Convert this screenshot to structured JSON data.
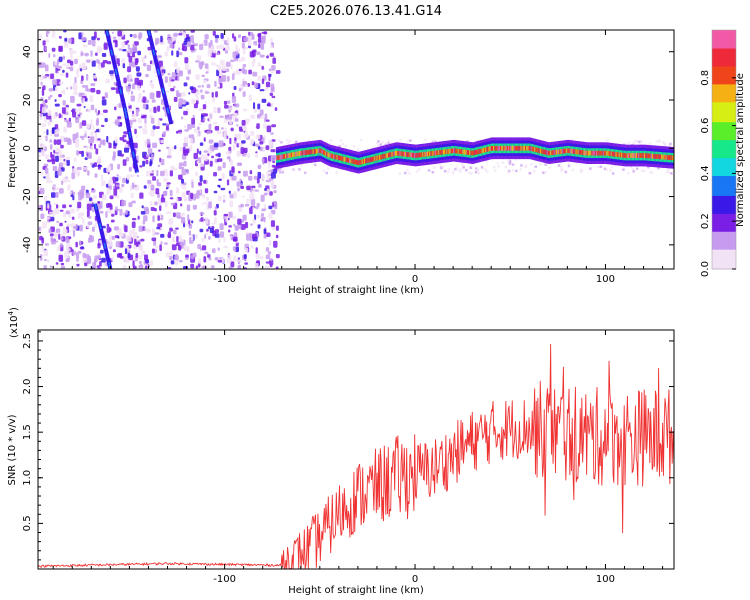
{
  "chart_data": [
    {
      "type": "heatmap",
      "title": "C2E5.2026.076.13.41.G14",
      "xlabel": "Height of straight line (km)",
      "ylabel": "Frequency (Hz)",
      "xlim": [
        -198,
        136
      ],
      "ylim": [
        -50,
        49
      ],
      "xticks": [
        -100,
        0,
        100
      ],
      "yticks": [
        -40,
        -20,
        0,
        20,
        40
      ],
      "colorbar": {
        "label": "Normalized spectral amplitude",
        "range": [
          0.0,
          1.0
        ],
        "ticks": [
          "0.0",
          "0.2",
          "0.4",
          "0.6",
          "0.8"
        ],
        "colors": [
          "#f2e2f5",
          "#c79cf0",
          "#7a1fe6",
          "#3a18e8",
          "#1976f5",
          "#12d6e0",
          "#17e88a",
          "#5aee2a",
          "#d7ee14",
          "#f5b014",
          "#f0451a",
          "#ee2a3a",
          "#f25aa8"
        ]
      },
      "series": [
        {
          "name": "ridge",
          "points": [
            [
              -73,
              -4
            ],
            [
              -60,
              -2
            ],
            [
              -50,
              -1
            ],
            [
              -45,
              -3
            ],
            [
              -35,
              -5
            ],
            [
              -30,
              -6
            ],
            [
              -20,
              -4
            ],
            [
              -10,
              -2
            ],
            [
              0,
              -3
            ],
            [
              10,
              -2
            ],
            [
              20,
              -1
            ],
            [
              30,
              -2
            ],
            [
              40,
              0
            ],
            [
              50,
              0
            ],
            [
              60,
              0
            ],
            [
              70,
              -2
            ],
            [
              80,
              -1
            ],
            [
              90,
              -2
            ],
            [
              100,
              -2
            ],
            [
              110,
              -3
            ],
            [
              120,
              -3
            ],
            [
              136,
              -4
            ]
          ]
        },
        {
          "name": "diagonal-1",
          "points": [
            [
              -162,
              49
            ],
            [
              -152,
              15
            ],
            [
              -146,
              -10
            ]
          ]
        },
        {
          "name": "diagonal-2",
          "points": [
            [
              -140,
              49
            ],
            [
              -128,
              10
            ]
          ]
        },
        {
          "name": "diagonal-3",
          "points": [
            [
              -168,
              -23
            ],
            [
              -160,
              -50
            ]
          ]
        }
      ]
    },
    {
      "type": "line",
      "xlabel": "Height of straight line (km)",
      "ylabel": "SNR (10 * v/v)",
      "exponent_label": "(x10",
      "exponent_power": "4",
      "xlim": [
        -198,
        136
      ],
      "ylim": [
        0,
        2.62
      ],
      "xticks": [
        -100,
        0,
        100
      ],
      "yticks": [
        "0.5",
        "1.0",
        "1.5",
        "2.0",
        "2.5"
      ],
      "color": "#f03232",
      "envelope": [
        [
          -198,
          0.03
        ],
        [
          -130,
          0.06
        ],
        [
          -70,
          0.04
        ],
        [
          -60,
          0.15
        ],
        [
          -50,
          0.35
        ],
        [
          -40,
          0.6
        ],
        [
          -30,
          0.8
        ],
        [
          -20,
          0.9
        ],
        [
          -10,
          1.0
        ],
        [
          0,
          1.05
        ],
        [
          10,
          1.1
        ],
        [
          20,
          1.25
        ],
        [
          30,
          1.4
        ],
        [
          40,
          1.5
        ],
        [
          50,
          1.55
        ],
        [
          60,
          1.55
        ],
        [
          70,
          1.5
        ],
        [
          80,
          1.5
        ],
        [
          90,
          1.45
        ],
        [
          100,
          1.45
        ],
        [
          110,
          1.45
        ],
        [
          120,
          1.45
        ],
        [
          136,
          1.45
        ]
      ]
    }
  ]
}
